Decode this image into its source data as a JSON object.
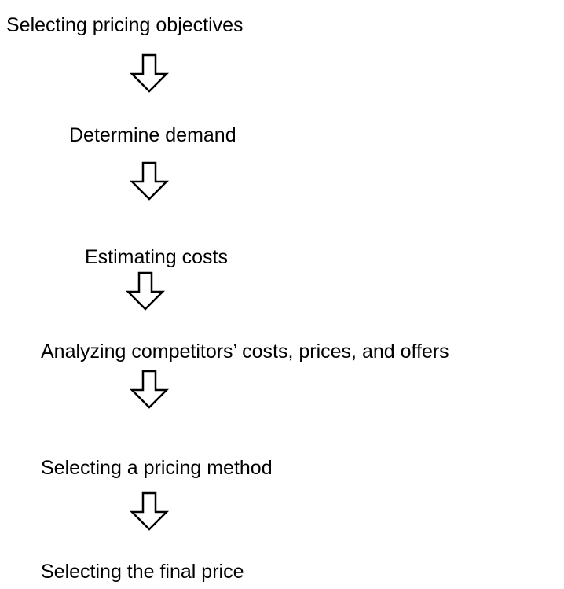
{
  "steps": [
    "Selecting pricing objectives",
    "Determine demand",
    "Estimating costs",
    "Analyzing competitors’ costs, prices, and offers",
    "Selecting a pricing method",
    "Selecting the final price"
  ]
}
